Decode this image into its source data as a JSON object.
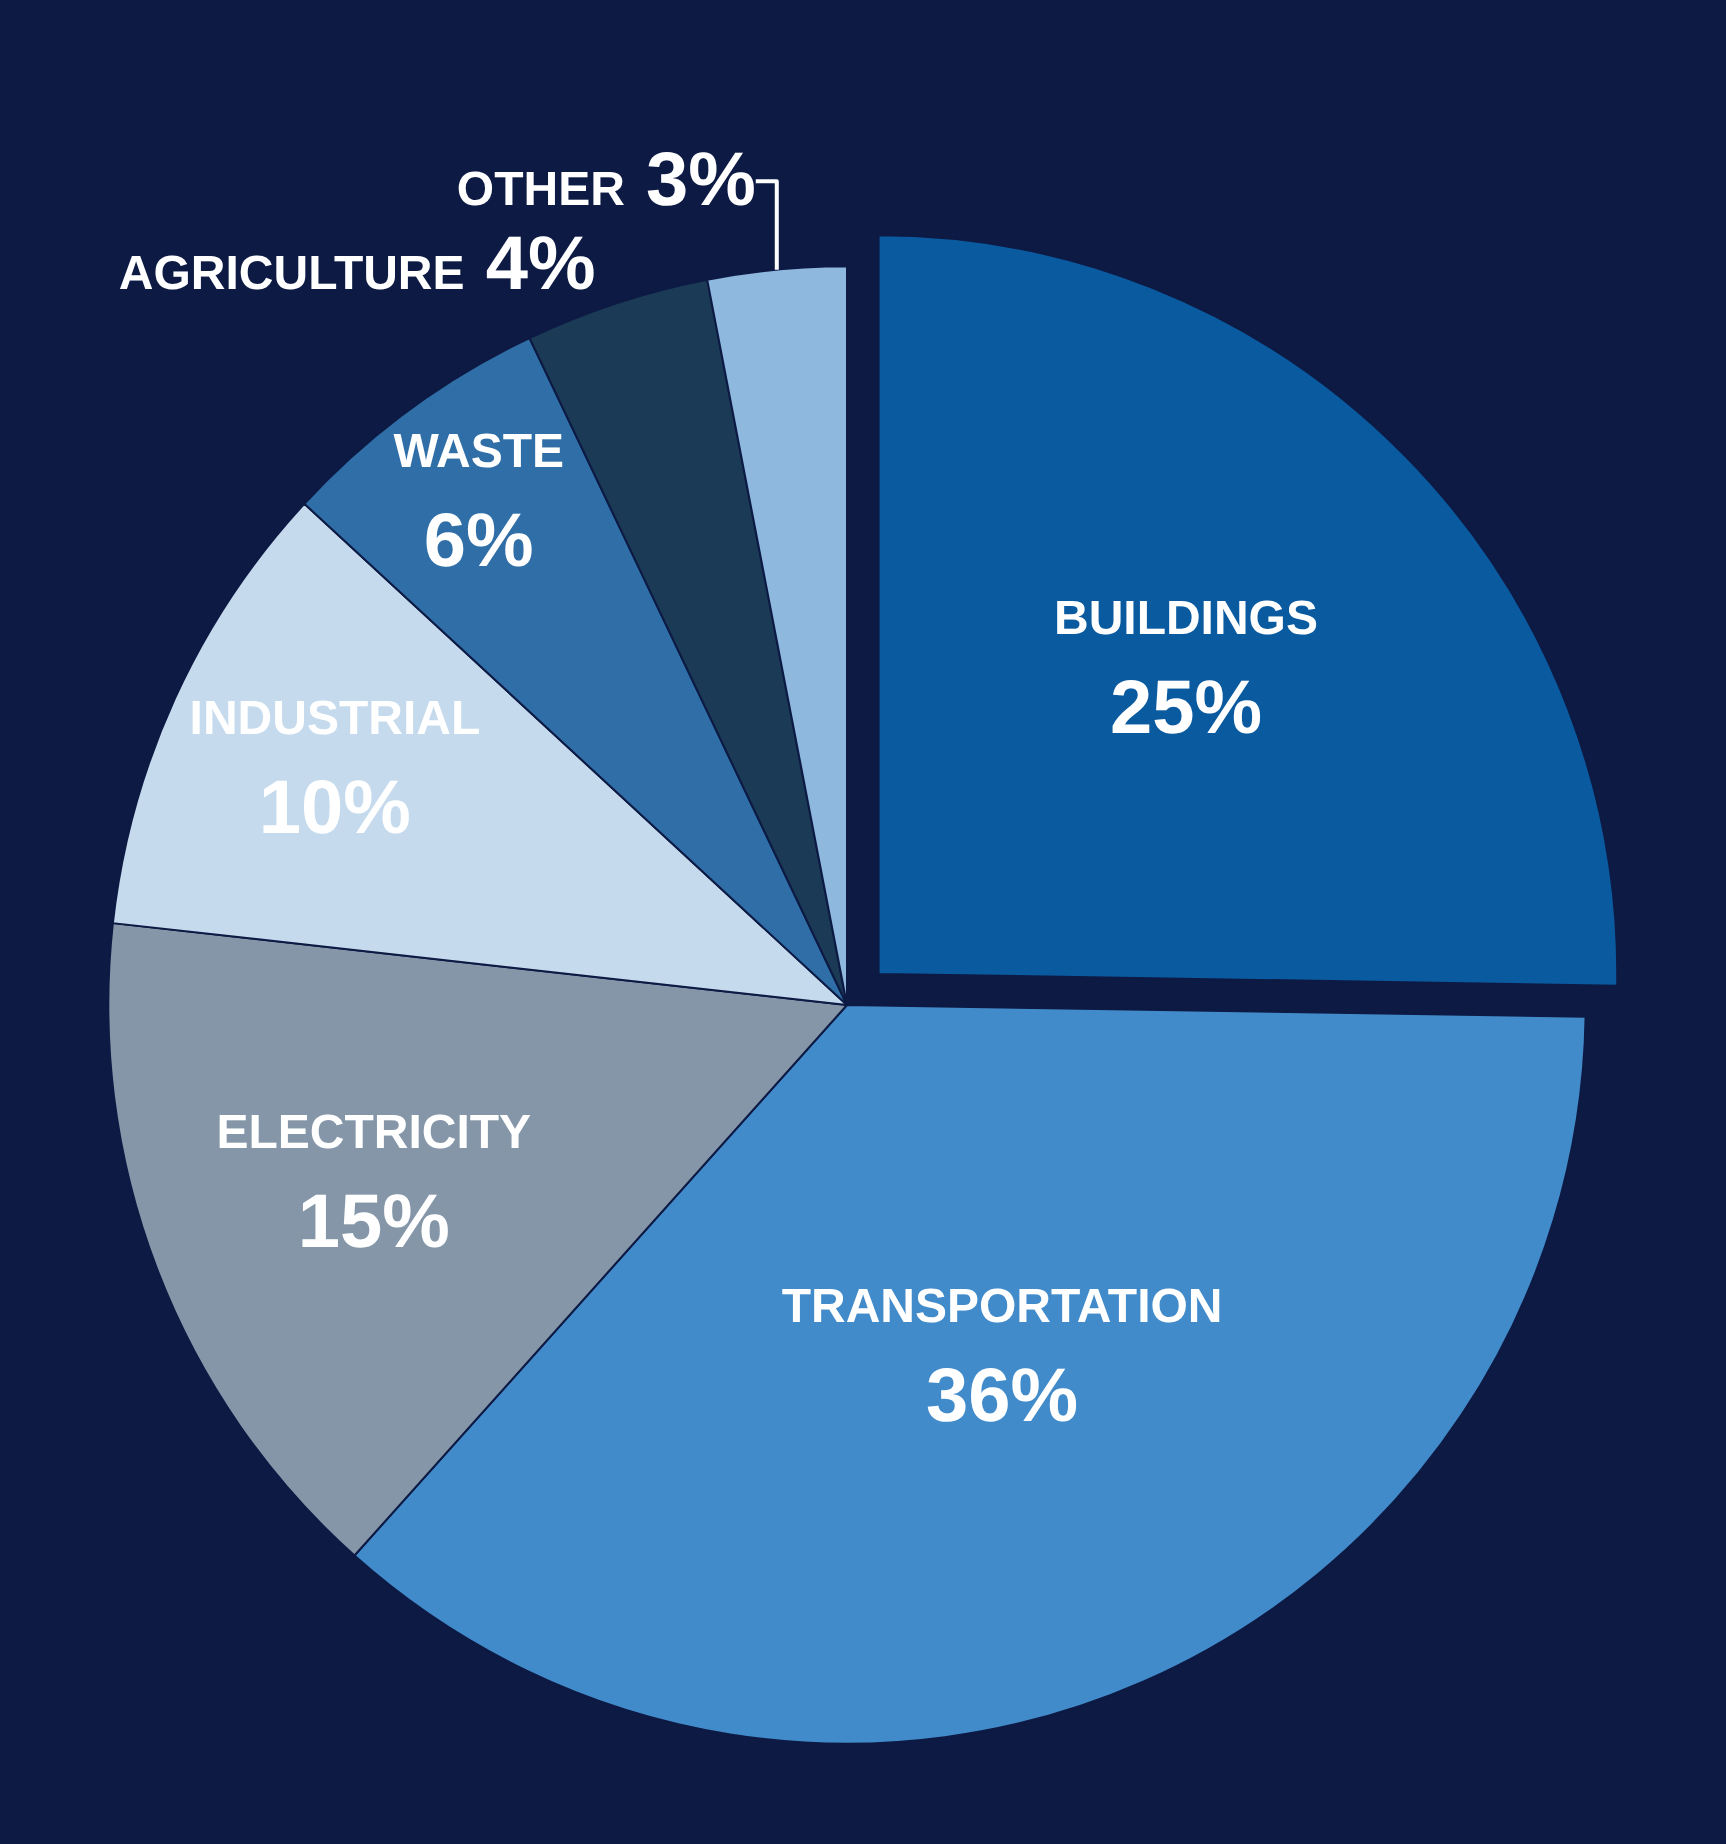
{
  "chart_data": {
    "type": "pie",
    "categories": [
      "BUILDINGS",
      "TRANSPORTATION",
      "ELECTRICITY",
      "INDUSTRIAL",
      "WASTE",
      "AGRICULTURE",
      "OTHER"
    ],
    "values": [
      25,
      36,
      15,
      10,
      6,
      4,
      3
    ],
    "value_labels": [
      "25%",
      "36%",
      "15%",
      "10%",
      "6%",
      "4%",
      "3%"
    ],
    "colors": [
      "#0a5aa0",
      "#428bca",
      "#8496a8",
      "#c5daed",
      "#2f6ea6",
      "#1a3a56",
      "#8fb8de"
    ],
    "legend": false
  }
}
